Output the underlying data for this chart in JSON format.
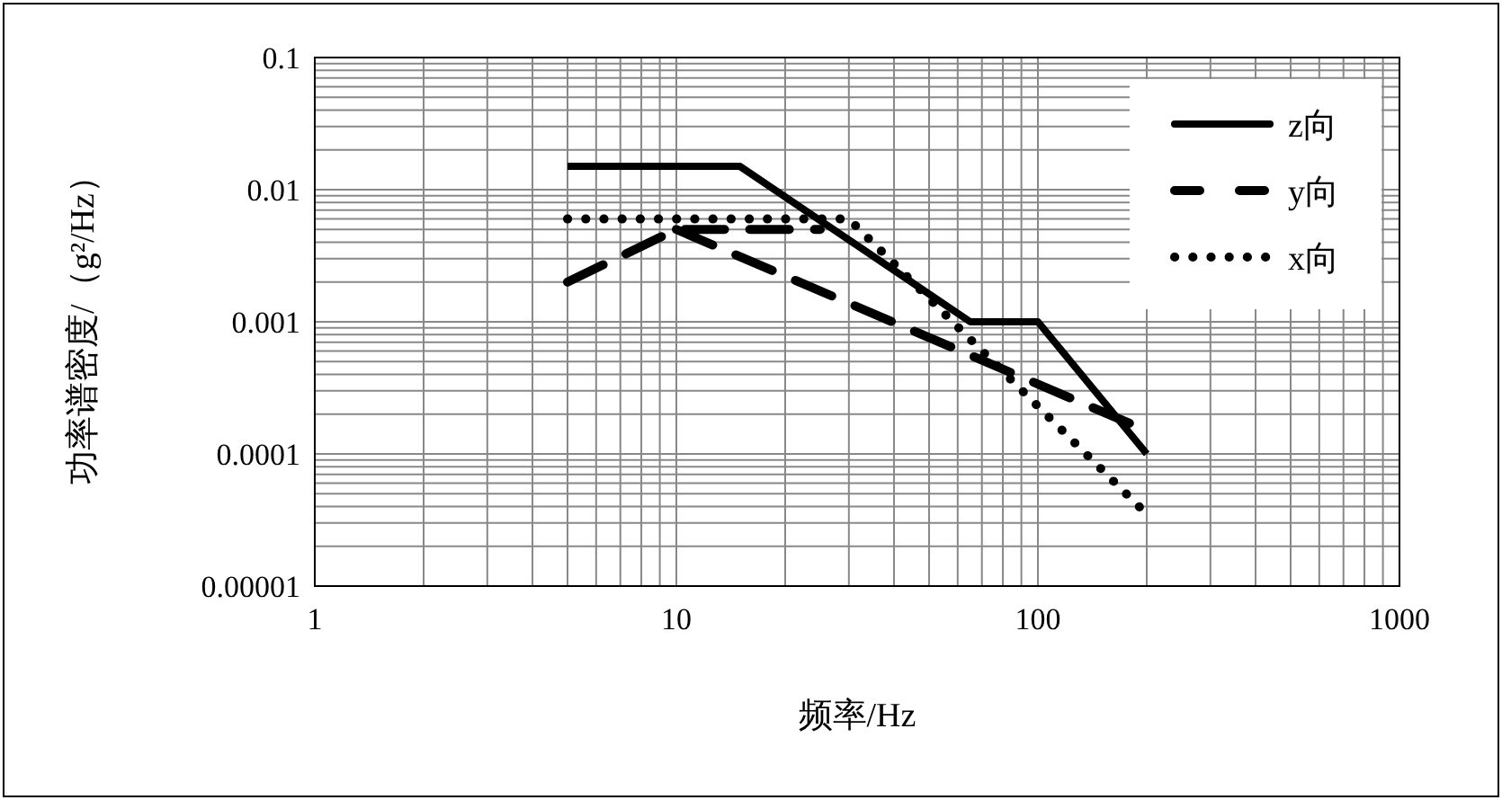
{
  "chart_data": {
    "type": "line",
    "xlabel": "频率/Hz",
    "ylabel": "功率谱密度/（g²/Hz）",
    "log": "xy",
    "grid": true,
    "legend": "top right",
    "xlim": [
      1,
      1000
    ],
    "xticks": [
      1,
      10,
      100,
      1000
    ],
    "ylim": [
      1e-05,
      0.1
    ],
    "yticks": [
      {
        "value": 1e-05,
        "label": "0.00001"
      },
      0.0001,
      0.001,
      0.01,
      0.1
    ],
    "series": [
      {
        "name": "z向",
        "color": "#000000",
        "line_style": "solid",
        "x": [
          5,
          15,
          65,
          100,
          200
        ],
        "values": [
          0.015,
          0.015,
          0.001,
          0.001,
          0.0001
        ]
      },
      {
        "name": "y向",
        "color": "#000000",
        "line_style": "dashed",
        "x": [
          5,
          10,
          25,
          null,
          10,
          200
        ],
        "values": [
          0.002,
          0.005,
          0.005,
          null,
          0.005,
          0.00015
        ]
      },
      {
        "name": "x向",
        "color": "#000000",
        "line_style": "dotted",
        "x": [
          5,
          30,
          200
        ],
        "values": [
          0.006,
          0.006,
          3.5e-05
        ]
      }
    ]
  }
}
